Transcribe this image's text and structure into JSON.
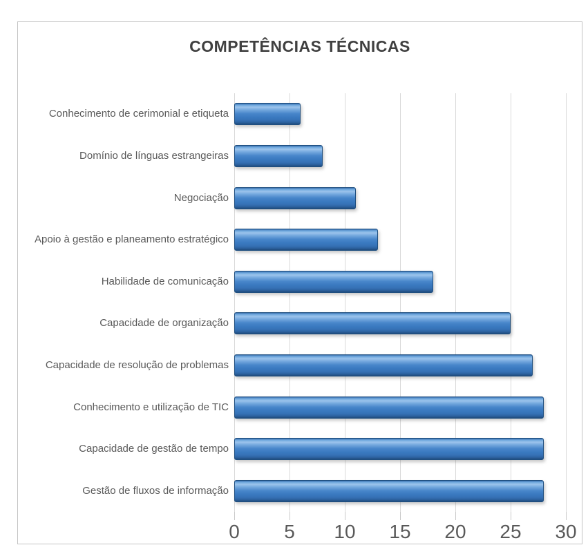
{
  "chart_data": {
    "type": "bar",
    "orientation": "horizontal",
    "title": "COMPETÊNCIAS TÉCNICAS",
    "categories": [
      "Conhecimento de cerimonial e etiqueta",
      "Domínio de línguas estrangeiras",
      "Negociação",
      "Apoio à gestão e planeamento estratégico",
      "Habilidade de comunicação",
      "Capacidade de organização",
      "Capacidade de resolução de problemas",
      "Conhecimento e utilização de TIC",
      "Capacidade de gestão de tempo",
      "Gestão de fluxos de informação"
    ],
    "values": [
      6,
      8,
      11,
      13,
      18,
      25,
      27,
      28,
      28,
      28
    ],
    "xlabel": "",
    "ylabel": "",
    "xlim": [
      0,
      30
    ],
    "xticks": [
      0,
      5,
      10,
      15,
      20,
      25,
      30
    ],
    "grid": true,
    "legend": false,
    "colors": {
      "bar_fill": "#3C7CC2",
      "bar_highlight": "#9CC4EC",
      "bar_border": "#1F4F80",
      "gridline": "#D9D9D9",
      "axis_text": "#595959",
      "title_text": "#404040",
      "frame_border": "#C3C3C3"
    }
  }
}
